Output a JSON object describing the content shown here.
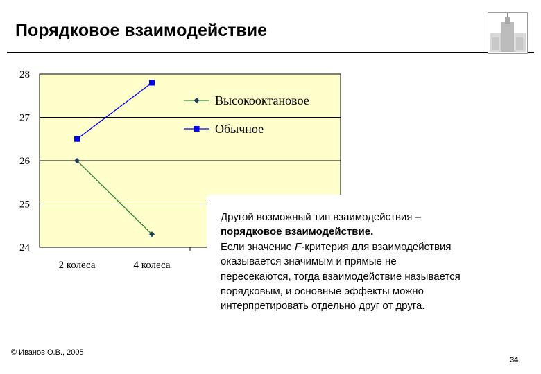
{
  "slide": {
    "title": "Порядковое взаимодействие",
    "footer": "© Иванов О.В., 2005",
    "page_number": "34"
  },
  "textbox": {
    "line1": "Другой возможный тип взаимодействия –",
    "line2": "порядковое взаимодействие",
    "line2_suffix": ".",
    "line3_prefix": "Если значение ",
    "line3_em": "F",
    "line3_suffix": "-критерия для взаимодействия",
    "line4": "оказывается значимым и прямые не",
    "line5": "пересекаются, тогда взаимодействие называется",
    "line6": "порядковым, и основные эффекты можно",
    "line7": "интерпретировать отдельно друг от друга."
  },
  "chart_data": {
    "type": "line",
    "categories": [
      "2 колеса",
      "4 колеса"
    ],
    "series": [
      {
        "name": "Высокооктановое",
        "values": [
          26.0,
          24.3
        ],
        "color": "#2e8b2e",
        "marker": "diamond",
        "marker_color": "#1f3a5f"
      },
      {
        "name": "Обычное",
        "values": [
          26.5,
          27.8
        ],
        "color": "#0000ee",
        "marker": "square",
        "marker_color": "#0000ee"
      }
    ],
    "ylim": [
      24,
      28
    ],
    "yticks": [
      "24",
      "25",
      "26",
      "27",
      "28"
    ],
    "grid": true,
    "legend": "right",
    "plot_background": "#ffffcc"
  }
}
